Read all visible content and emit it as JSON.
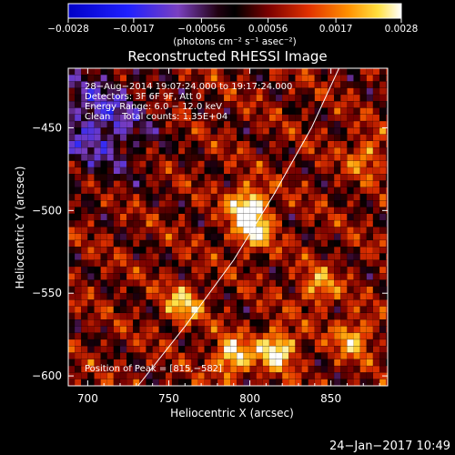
{
  "chart_data": {
    "type": "heatmap",
    "title": "Reconstructed RHESSI Image",
    "xlabel": "Heliocentric X (arcsec)",
    "ylabel": "Heliocentric Y (arcsec)",
    "xlim": [
      688,
      885
    ],
    "ylim": [
      -606,
      -414
    ],
    "x_ticks": [
      700,
      750,
      800,
      850
    ],
    "y_ticks": [
      -450,
      -500,
      -550,
      -600
    ],
    "x_tick_labels": [
      "700",
      "750",
      "800",
      "850"
    ],
    "y_tick_labels": [
      "−450",
      "−500",
      "−550",
      "−600"
    ],
    "colorbar": {
      "range": [
        -0.0028,
        0.0028
      ],
      "ticks": [
        -0.0028,
        -0.0017,
        -0.00056,
        0.00056,
        0.0017,
        0.0028
      ],
      "tick_labels": [
        "−0.0028",
        "−0.0017",
        "−0.00056",
        "0.00056",
        "0.0017",
        "0.0028"
      ],
      "unit_label": "(photons cm⁻² s⁻¹ asec⁻²)"
    },
    "annotations": [
      "28−Aug−2014 19:07:24.000 to 19:17:24.000",
      "Detectors: 3F 6F 9F, Att 0",
      "Energy Range: 6.0 − 12.0 keV",
      "Clean    Total counts: 1.35E+04"
    ],
    "peak_label": "Position of Peak = [815,−582]",
    "limb_curve": [
      [
        731,
        -606
      ],
      [
        760,
        -570
      ],
      [
        790,
        -530
      ],
      [
        815,
        -490
      ],
      [
        838,
        -450
      ],
      [
        855,
        -414
      ]
    ],
    "hotspots": [
      {
        "x": 797,
        "y": -495,
        "amp": 1.0
      },
      {
        "x": 800,
        "y": -510,
        "amp": 0.85
      },
      {
        "x": 787,
        "y": -587,
        "amp": 0.9
      },
      {
        "x": 815,
        "y": -582,
        "amp": 1.0
      },
      {
        "x": 757,
        "y": -555,
        "amp": 0.7
      },
      {
        "x": 840,
        "y": -545,
        "amp": 0.6
      },
      {
        "x": 862,
        "y": -575,
        "amp": 0.7
      },
      {
        "x": 870,
        "y": -465,
        "amp": 0.55
      }
    ],
    "cold_region": {
      "x": 705,
      "y": -445,
      "amp": -0.6
    }
  },
  "footer_date": "24−Jan−2017 10:49"
}
